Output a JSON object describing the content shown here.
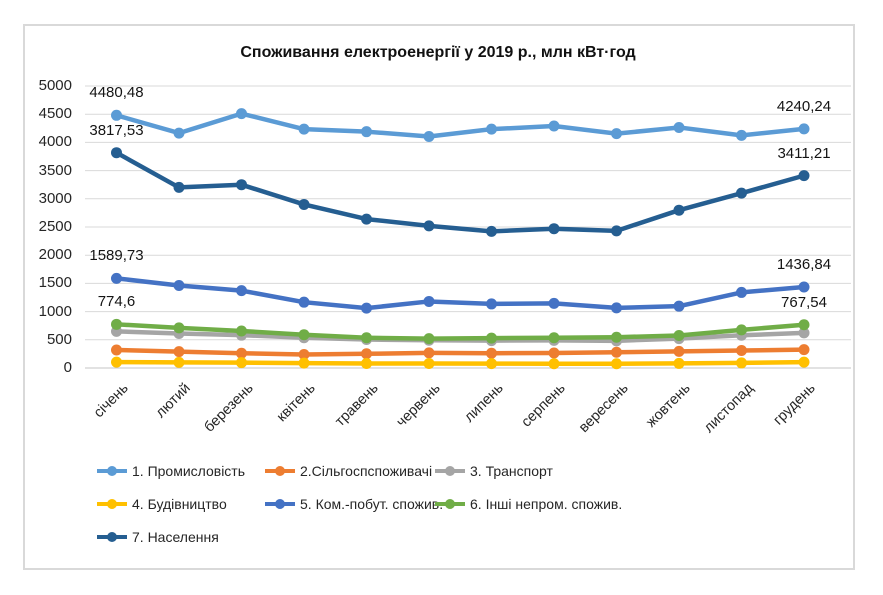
{
  "chart_data": {
    "type": "line",
    "title": "Споживання електроенергії у 2019 р., млн кВт·год",
    "xlabel": "",
    "ylabel": "",
    "ylim": [
      0,
      5000
    ],
    "y_ticks": [
      0,
      500,
      1000,
      1500,
      2000,
      2500,
      3000,
      3500,
      4000,
      4500,
      5000
    ],
    "grid": true,
    "legend_position": "bottom",
    "categories": [
      "січень",
      "лютий",
      "березень",
      "квітень",
      "травень",
      "червень",
      "липень",
      "серпень",
      "вересень",
      "жовтень",
      "листопад",
      "грудень"
    ],
    "series": [
      {
        "name": "1. Промисловість",
        "color": "#5B9BD5",
        "values": [
          4480.48,
          4165,
          4510,
          4235,
          4190,
          4105,
          4235,
          4290,
          4155,
          4265,
          4125,
          4240.24
        ]
      },
      {
        "name": "2.Сільгоспспоживачі",
        "color": "#ED7D31",
        "values": [
          320,
          290,
          262,
          240,
          252,
          268,
          262,
          266,
          280,
          294,
          310,
          326
        ]
      },
      {
        "name": "3. Транспорт",
        "color": "#A5A5A5",
        "values": [
          650,
          612,
          582,
          537,
          505,
          492,
          486,
          490,
          482,
          520,
          580,
          622
        ]
      },
      {
        "name": "4. Будівництво",
        "color": "#FFC000",
        "values": [
          104,
          100,
          95,
          86,
          80,
          79,
          77,
          76,
          75,
          81,
          90,
          104
        ]
      },
      {
        "name": "5. Ком.-побут. спожив.",
        "color": "#4472C4",
        "values": [
          1589.73,
          1462,
          1372,
          1167,
          1062,
          1180,
          1136,
          1146,
          1066,
          1096,
          1340,
          1436.84
        ]
      },
      {
        "name": "6. Інші непром. спожив.",
        "color": "#70AD47",
        "values": [
          774.6,
          712,
          656,
          590,
          536,
          521,
          530,
          536,
          546,
          576,
          676,
          767.54
        ]
      },
      {
        "name": "7. Населення",
        "color": "#255E91",
        "values": [
          3817.53,
          3202,
          3250,
          2900,
          2640,
          2520,
          2422,
          2470,
          2432,
          2798,
          3100,
          3411.21
        ]
      }
    ],
    "data_labels": [
      {
        "series": 0,
        "point": 0,
        "text": "4480,48"
      },
      {
        "series": 0,
        "point": 11,
        "text": "4240,24"
      },
      {
        "series": 6,
        "point": 0,
        "text": "3817,53"
      },
      {
        "series": 6,
        "point": 11,
        "text": "3411,21"
      },
      {
        "series": 4,
        "point": 0,
        "text": "1589,73"
      },
      {
        "series": 4,
        "point": 11,
        "text": "1436,84"
      },
      {
        "series": 5,
        "point": 0,
        "text": "774,6"
      },
      {
        "series": 5,
        "point": 11,
        "text": "767,54"
      }
    ]
  }
}
